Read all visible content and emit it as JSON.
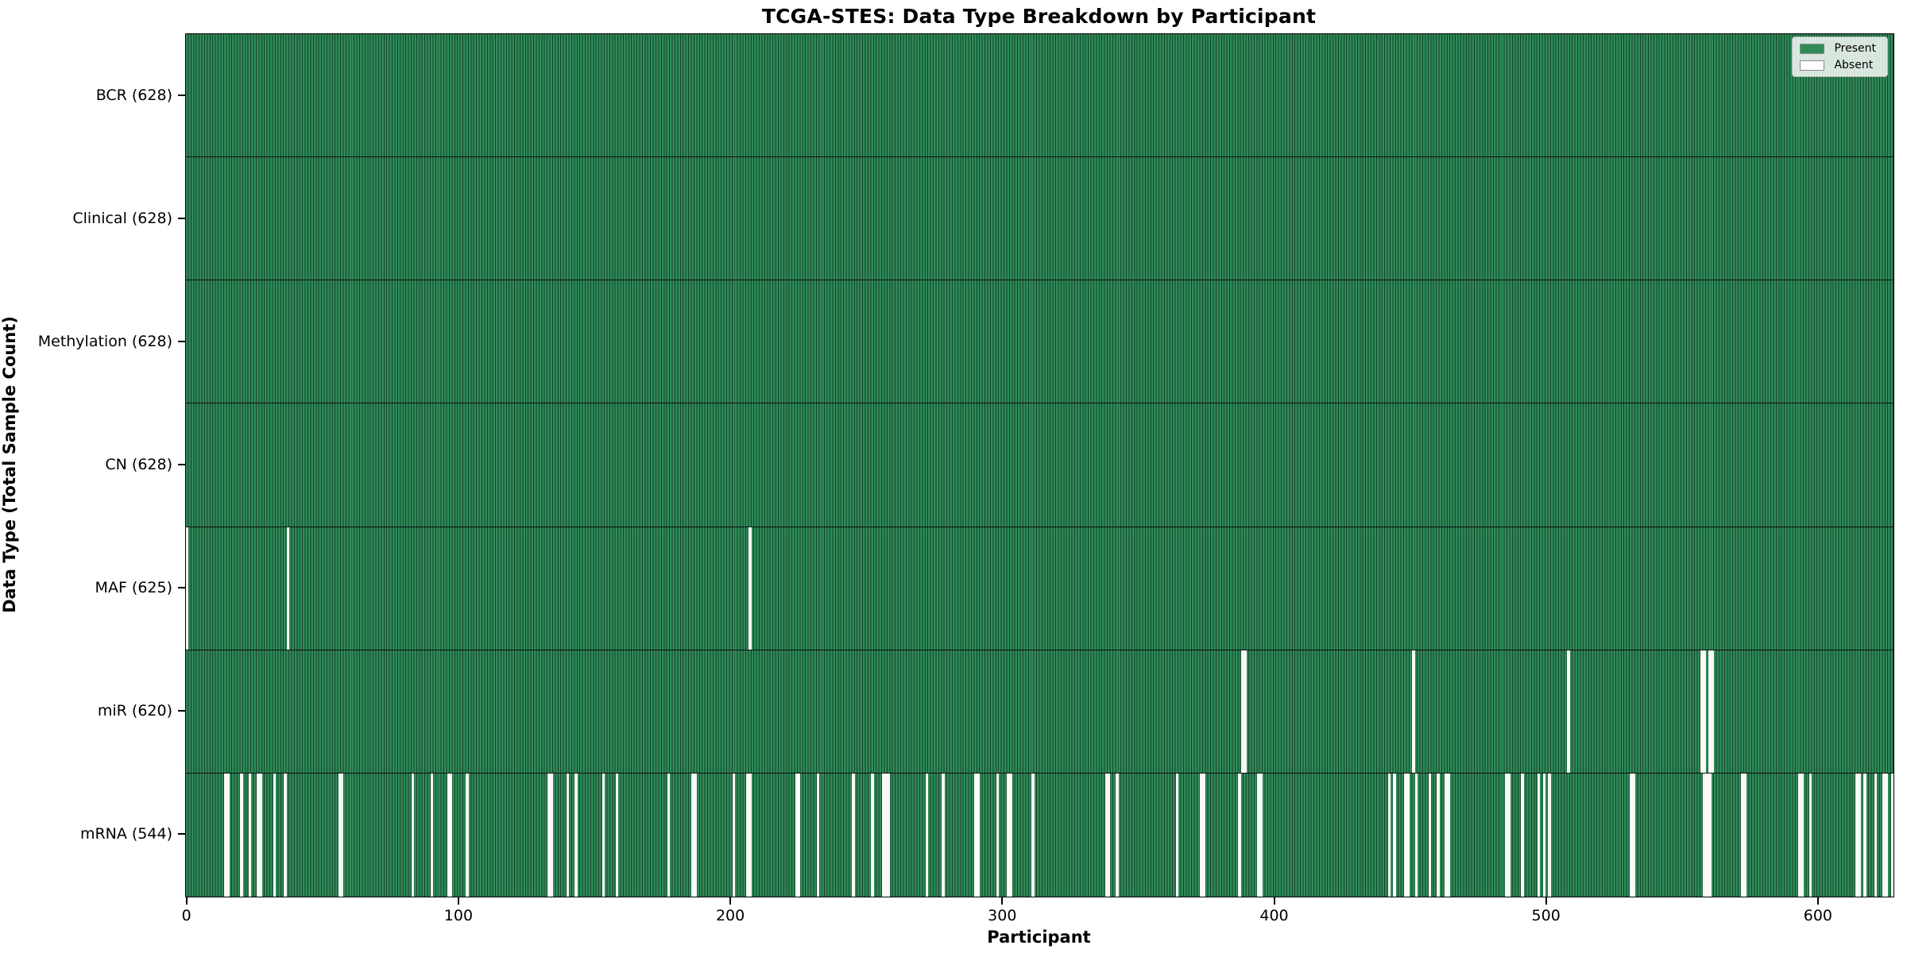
{
  "chart_data": {
    "type": "heatmap",
    "title": "TCGA-STES: Data Type Breakdown by Participant",
    "xlabel": "Participant",
    "ylabel": "Data Type (Total Sample Count)",
    "n_participants": 628,
    "xlim": [
      -0.5,
      627.5
    ],
    "x_ticks": [
      0,
      100,
      200,
      300,
      400,
      500,
      600
    ],
    "grid": false,
    "legend_position": "upper right",
    "present_color": "#2e8b57",
    "bar_edge_color": "#000000",
    "absent_color": "#ffffff",
    "legend": [
      {
        "label": "Present",
        "color": "#2e8b57"
      },
      {
        "label": "Absent",
        "color": "#ffffff"
      }
    ],
    "rows": [
      {
        "label": "BCR (628)",
        "data_type": "BCR",
        "present_count": 628,
        "absent_participants": []
      },
      {
        "label": "Clinical (628)",
        "data_type": "Clinical",
        "present_count": 628,
        "absent_participants": []
      },
      {
        "label": "Methylation (628)",
        "data_type": "Methylation",
        "present_count": 628,
        "absent_participants": []
      },
      {
        "label": "CN (628)",
        "data_type": "CN",
        "present_count": 628,
        "absent_participants": []
      },
      {
        "label": "MAF (625)",
        "data_type": "MAF",
        "present_count": 625,
        "absent_participants": [
          0,
          37,
          207
        ]
      },
      {
        "label": "miR (620)",
        "data_type": "miR",
        "present_count": 620,
        "absent_participants": [
          388,
          389,
          451,
          508,
          557,
          558,
          560,
          561
        ]
      },
      {
        "label": "mRNA (544)",
        "data_type": "mRNA",
        "present_count": 544,
        "absent_participants": [
          14,
          15,
          20,
          23,
          26,
          27,
          32,
          36,
          56,
          57,
          83,
          90,
          96,
          97,
          103,
          133,
          134,
          140,
          143,
          153,
          158,
          177,
          186,
          187,
          201,
          206,
          207,
          224,
          225,
          232,
          245,
          252,
          256,
          257,
          258,
          272,
          278,
          290,
          291,
          298,
          302,
          303,
          311,
          338,
          339,
          342,
          364,
          373,
          374,
          387,
          394,
          395,
          442,
          444,
          448,
          449,
          452,
          457,
          460,
          463,
          464,
          485,
          486,
          491,
          497,
          499,
          501,
          531,
          532,
          558,
          559,
          560,
          572,
          573,
          593,
          594,
          597,
          614,
          615,
          617,
          621,
          624,
          625,
          627
        ]
      }
    ]
  }
}
